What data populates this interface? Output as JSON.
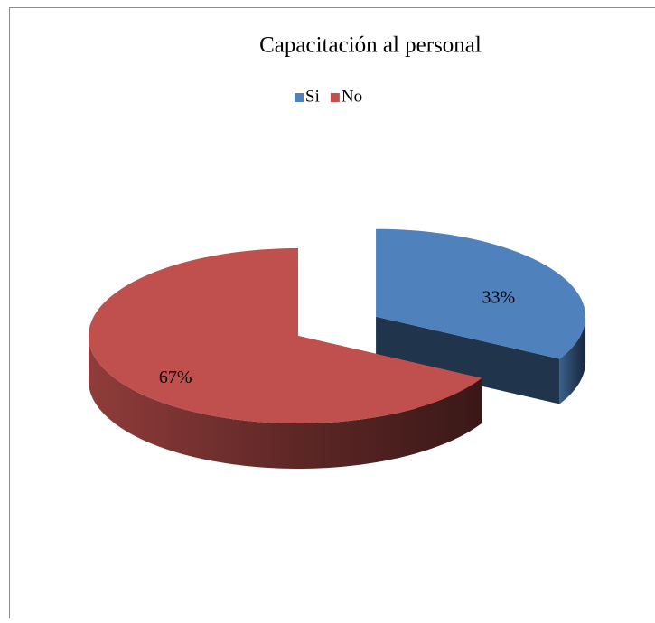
{
  "chart_data": {
    "type": "pie",
    "title": "Capacitación al personal",
    "categories": [
      "Si",
      "No"
    ],
    "values": [
      33,
      67
    ],
    "value_labels": [
      "33%",
      "67%"
    ],
    "colors": [
      "#4f81bd",
      "#c0504d"
    ],
    "legend": "top",
    "exploded": [
      true,
      false
    ]
  }
}
